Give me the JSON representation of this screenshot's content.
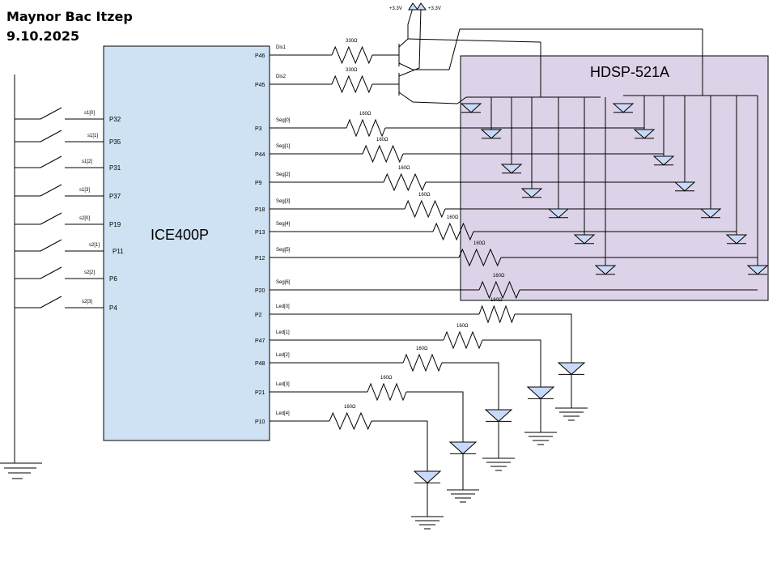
{
  "header": {
    "author": "Maynor Bac Itzep",
    "date": "9.10.2025"
  },
  "chip": {
    "name": "ICE400P",
    "left_pins": [
      "P32",
      "P35",
      "P31",
      "P37",
      "P19",
      "P11",
      "P6",
      "P4"
    ],
    "right_pins": [
      "P46",
      "P45",
      "P3",
      "P44",
      "P9",
      "P18",
      "P13",
      "P12",
      "P20",
      "P2",
      "P47",
      "P48",
      "P21",
      "P10"
    ]
  },
  "switches": [
    "s1[0]",
    "s1[1]",
    "s1[2]",
    "s1[3]",
    "s2[0]",
    "s2[1]",
    "s2[2]",
    "s2[3]"
  ],
  "nets": [
    "Dis1",
    "Dis2",
    "Seg[0]",
    "Seg[1]",
    "Seg[2]",
    "Seg[3]",
    "Seg[4]",
    "Seg[5]",
    "Seg[6]",
    "Led[0]",
    "Led[1]",
    "Led[2]",
    "Led[3]",
    "Led[4]"
  ],
  "resistors": [
    "330Ω",
    "330Ω",
    "160Ω",
    "160Ω",
    "160Ω",
    "160Ω",
    "160Ω",
    "160Ω",
    "160Ω",
    "160Ω",
    "160Ω",
    "160Ω",
    "160Ω",
    "160Ω"
  ],
  "display": {
    "name": "HDSP-521A",
    "fill": "#dcd3e8"
  },
  "supply": [
    "+3.3V",
    "+3.3V"
  ],
  "colors": {
    "chip_fill": "#cfe2f3",
    "diode_fill": "#c9daf8",
    "wire": "#000000"
  }
}
